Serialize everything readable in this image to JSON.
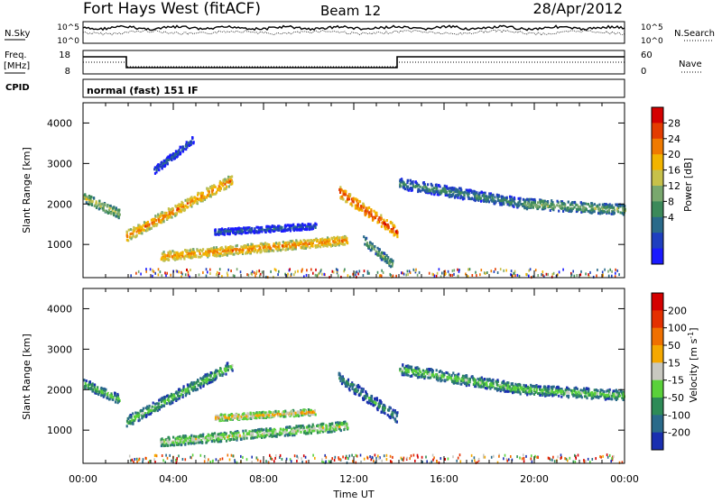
{
  "header": {
    "station": "Fort Hays West (fitACF)",
    "beam": "Beam 12",
    "date": "28/Apr/2012"
  },
  "noise_panel": {
    "left_label": "N.Sky",
    "right_label": "N.Search",
    "ticks": [
      "10^5",
      "10^0"
    ]
  },
  "freq_panel": {
    "left_label_1": "Freq.",
    "left_label_2": "[MHz]",
    "left_ticks": [
      "18",
      "8"
    ],
    "right_label": "Nave",
    "right_ticks": [
      "60",
      "0"
    ]
  },
  "cpid_panel": {
    "label": "CPID",
    "program": "normal (fast) 151 IF"
  },
  "x_axis": {
    "label": "Time UT",
    "ticks": [
      "00:00",
      "04:00",
      "08:00",
      "12:00",
      "16:00",
      "20:00",
      "00:00"
    ]
  },
  "chart_data": [
    {
      "type": "heatmap",
      "name": "power",
      "ylabel": "Slant Range [km]",
      "yticks": [
        "4000",
        "3000",
        "2000",
        "1000"
      ],
      "ylim": [
        180,
        4500
      ],
      "xlim": [
        0,
        24
      ],
      "colorbar": {
        "label": "Power [dB]",
        "ticks": [
          "28",
          "24",
          "20",
          "16",
          "12",
          "8",
          "4"
        ],
        "colors": [
          "#1a1aff",
          "#1f3fbf",
          "#2a6a8a",
          "#3c8a5a",
          "#79a86e",
          "#c7c14a",
          "#f2b400",
          "#f07a00",
          "#e43c00",
          "#d40000"
        ]
      },
      "bands": [
        {
          "t0": 0.0,
          "t1": 1.6,
          "r0": 2150,
          "r1": 1750,
          "w": 220,
          "level": 6
        },
        {
          "t0": 1.9,
          "t1": 6.6,
          "r0": 1200,
          "r1": 2600,
          "w": 260,
          "level": 8
        },
        {
          "t0": 3.1,
          "t1": 4.9,
          "r0": 2800,
          "r1": 3600,
          "w": 180,
          "level": 3
        },
        {
          "t0": 3.4,
          "t1": 11.7,
          "r0": 700,
          "r1": 1100,
          "w": 220,
          "level": 8
        },
        {
          "t0": 5.8,
          "t1": 10.3,
          "r0": 1300,
          "r1": 1450,
          "w": 150,
          "level": 3
        },
        {
          "t0": 11.3,
          "t1": 13.9,
          "r0": 2300,
          "r1": 1300,
          "w": 280,
          "level": 9
        },
        {
          "t0": 12.4,
          "t1": 13.7,
          "r0": 1100,
          "r1": 500,
          "w": 220,
          "level": 5
        },
        {
          "t0": 14.0,
          "t1": 19.5,
          "r0": 2500,
          "r1": 2000,
          "w": 260,
          "level": 4
        },
        {
          "t0": 19.5,
          "t1": 24.0,
          "r0": 2000,
          "r1": 1850,
          "w": 250,
          "level": 5
        }
      ]
    },
    {
      "type": "heatmap",
      "name": "velocity",
      "ylabel": "Slant Range [km]",
      "yticks": [
        "4000",
        "3000",
        "2000",
        "1000"
      ],
      "ylim": [
        180,
        4500
      ],
      "xlim": [
        0,
        24
      ],
      "colorbar": {
        "label": "Velocity [m s-1]",
        "ticks": [
          "200",
          "100",
          "50",
          "15",
          "-15",
          "-50",
          "-100",
          "-200"
        ],
        "colors": [
          "#1a2fb0",
          "#2a6a8a",
          "#2e8b57",
          "#5ad13a",
          "#c8c8c0",
          "#f5a800",
          "#f07000",
          "#e43000",
          "#d40000"
        ]
      },
      "bands": [
        {
          "t0": 0.0,
          "t1": 1.6,
          "r0": 2150,
          "r1": 1750,
          "w": 220,
          "level": 4
        },
        {
          "t0": 1.9,
          "t1": 6.6,
          "r0": 1200,
          "r1": 2600,
          "w": 260,
          "level": 4
        },
        {
          "t0": 3.4,
          "t1": 11.7,
          "r0": 700,
          "r1": 1100,
          "w": 220,
          "level": 5
        },
        {
          "t0": 5.8,
          "t1": 10.3,
          "r0": 1300,
          "r1": 1450,
          "w": 150,
          "level": 6
        },
        {
          "t0": 11.3,
          "t1": 13.9,
          "r0": 2300,
          "r1": 1300,
          "w": 280,
          "level": 3
        },
        {
          "t0": 14.0,
          "t1": 19.5,
          "r0": 2500,
          "r1": 2000,
          "w": 260,
          "level": 4
        },
        {
          "t0": 19.5,
          "t1": 24.0,
          "r0": 2000,
          "r1": 1850,
          "w": 250,
          "level": 4
        }
      ]
    }
  ]
}
